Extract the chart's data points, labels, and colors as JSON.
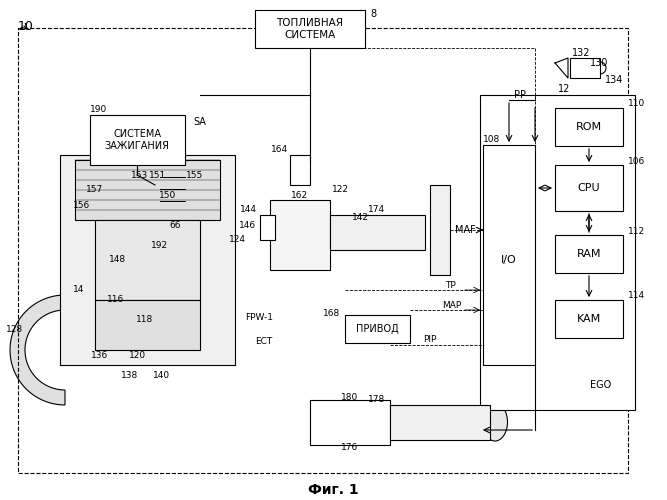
{
  "title": "Фиг. 1",
  "background_color": "#ffffff",
  "line_color": "#000000",
  "fig_width": 6.67,
  "fig_height": 5.0,
  "dpi": 100,
  "labels": {
    "fig_num": "10",
    "fuel_sys": "ТОПЛИВНАЯ\nСИСТЕМА",
    "ignition": "СИСТЕМА\nЗАЖИГАНИЯ",
    "drive": "ПРИВОД",
    "rom": "ROM",
    "cpu": "CPU",
    "ram": "RAM",
    "kam": "KAM",
    "io": "I/O",
    "sa": "SA",
    "maf": "MAF",
    "tp": "TP",
    "map": "MAP",
    "pip": "PIP",
    "ego": "EGO",
    "pp": "PP",
    "ect": "ECT",
    "fpw1": "FPW-1",
    "num_8": "8",
    "num_10": "10",
    "num_12": "12",
    "num_14": "14",
    "num_66": "66",
    "num_106": "106",
    "num_108": "108",
    "num_110": "110",
    "num_112": "112",
    "num_114": "114",
    "num_116": "116",
    "num_118": "118",
    "num_120": "120",
    "num_122": "122",
    "num_124": "124",
    "num_128": "128",
    "num_130": "130",
    "num_132": "132",
    "num_134": "134",
    "num_136": "136",
    "num_138": "138",
    "num_140": "140",
    "num_142": "142",
    "num_144": "144",
    "num_146": "146",
    "num_148": "148",
    "num_150": "150",
    "num_151": "151",
    "num_153": "153",
    "num_155": "155",
    "num_156": "156",
    "num_157": "157",
    "num_162": "162",
    "num_164": "164",
    "num_168": "168",
    "num_174": "174",
    "num_176": "176",
    "num_178": "178",
    "num_180": "180",
    "num_190": "190",
    "num_192": "192"
  }
}
